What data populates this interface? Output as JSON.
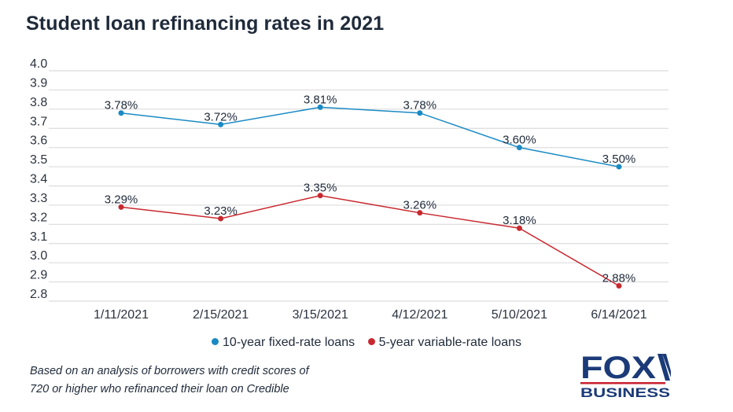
{
  "title": "Student loan refinancing rates in 2021",
  "note": [
    "Based on an analysis of borrowers with credit scores of",
    "720 or higher who refinanced their loan on Credible"
  ],
  "logo": {
    "line1": "FOX",
    "line2": "BUSINESS",
    "colors": {
      "navy": "#1b3a78",
      "red": "#c8202f"
    }
  },
  "chart_data": {
    "type": "line",
    "title": "Student loan refinancing rates in 2021",
    "categories": [
      "1/11/2021",
      "2/15/2021",
      "3/15/2021",
      "4/12/2021",
      "5/10/2021",
      "6/14/2021"
    ],
    "ylim": [
      2.8,
      4.0
    ],
    "yticks": [
      "4.0",
      "3.9",
      "3.8",
      "3.7",
      "3.6",
      "3.5",
      "3.4",
      "3.3",
      "3.2",
      "3.1",
      "3.0",
      "2.9",
      "2.8"
    ],
    "grid": true,
    "legend_position": "bottom",
    "series": [
      {
        "name": "10-year fixed-rate loans",
        "color": "#1a8ac4",
        "values": [
          3.78,
          3.72,
          3.81,
          3.78,
          3.6,
          3.5
        ],
        "labels": [
          "3.78%",
          "3.72%",
          "3.81%",
          "3.78%",
          "3.60%",
          "3.50%"
        ]
      },
      {
        "name": "5-year variable-rate loans",
        "color": "#c8282f",
        "values": [
          3.29,
          3.23,
          3.35,
          3.26,
          3.18,
          2.88
        ],
        "labels": [
          "3.29%",
          "3.23%",
          "3.35%",
          "3.26%",
          "3.18%",
          "2.88%"
        ]
      }
    ]
  }
}
